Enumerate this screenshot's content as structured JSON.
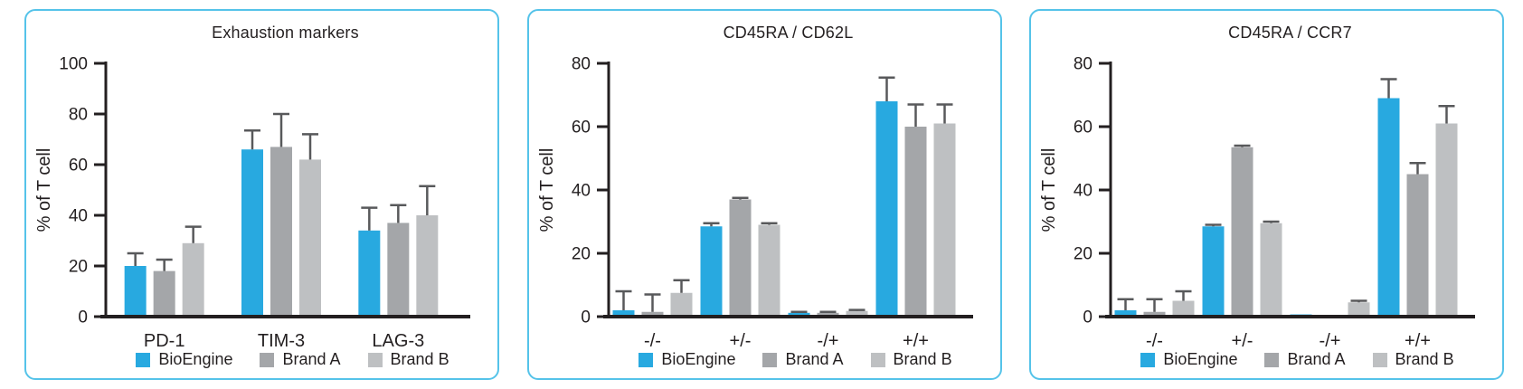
{
  "colors": {
    "accent_blue": "#28A9E0",
    "brand_a_gray": "#A4A6A9",
    "brand_b_gray": "#BEC0C2",
    "error_bar": "#58595B",
    "axis_text": "#231F20",
    "panel_border": "#55C3E9"
  },
  "chart_data": [
    {
      "type": "bar",
      "title": "Exhaustion markers",
      "ylabel": "% of T cell",
      "ylim": [
        0,
        100
      ],
      "yticks": [
        0,
        20,
        40,
        60,
        80,
        100
      ],
      "categories": [
        "PD-1",
        "TIM-3",
        "LAG-3"
      ],
      "grid": false,
      "error_bars": "upper",
      "legend_position": "bottom",
      "series": [
        {
          "name": "BioEngine",
          "color": "#28A9E0",
          "values": [
            20,
            66,
            34
          ],
          "errors": [
            5,
            7.5,
            9
          ]
        },
        {
          "name": "Brand A",
          "color": "#A4A6A9",
          "values": [
            18,
            67,
            37
          ],
          "errors": [
            4.5,
            13,
            7
          ]
        },
        {
          "name": "Brand B",
          "color": "#BEC0C2",
          "values": [
            29,
            62,
            40
          ],
          "errors": [
            6.5,
            10,
            11.5
          ]
        }
      ]
    },
    {
      "type": "bar",
      "title": "CD45RA / CD62L",
      "ylabel": "% of T cell",
      "ylim": [
        0,
        80
      ],
      "yticks": [
        0,
        20,
        40,
        60,
        80
      ],
      "categories": [
        "-/-",
        "+/-",
        "-/+",
        "+/+"
      ],
      "grid": false,
      "error_bars": "upper",
      "legend_position": "bottom",
      "series": [
        {
          "name": "BioEngine",
          "color": "#28A9E0",
          "values": [
            2,
            28.5,
            1.2,
            68
          ],
          "errors": [
            6,
            1,
            0.3,
            7.5
          ]
        },
        {
          "name": "Brand A",
          "color": "#A4A6A9",
          "values": [
            1.5,
            37,
            1.2,
            60
          ],
          "errors": [
            5.5,
            0.5,
            0.3,
            7
          ]
        },
        {
          "name": "Brand B",
          "color": "#BEC0C2",
          "values": [
            7.5,
            29,
            1.8,
            61
          ],
          "errors": [
            4,
            0.5,
            0.3,
            6
          ]
        }
      ]
    },
    {
      "type": "bar",
      "title": "CD45RA / CCR7",
      "ylabel": "% of T cell",
      "ylim": [
        0,
        80
      ],
      "yticks": [
        0,
        20,
        40,
        60,
        80
      ],
      "categories": [
        "-/-",
        "+/-",
        "-/+",
        "+/+"
      ],
      "grid": false,
      "error_bars": "upper",
      "legend_position": "bottom",
      "series": [
        {
          "name": "BioEngine",
          "color": "#28A9E0",
          "values": [
            2,
            28.5,
            0.7,
            69
          ],
          "errors": [
            3.5,
            0.5,
            0,
            6
          ]
        },
        {
          "name": "Brand A",
          "color": "#A4A6A9",
          "values": [
            1.5,
            53.5,
            0.3,
            45
          ],
          "errors": [
            4,
            0.5,
            0,
            3.5
          ]
        },
        {
          "name": "Brand B",
          "color": "#BEC0C2",
          "values": [
            5,
            29.5,
            4.5,
            61
          ],
          "errors": [
            3,
            0.5,
            0.5,
            5.5
          ]
        }
      ]
    }
  ]
}
